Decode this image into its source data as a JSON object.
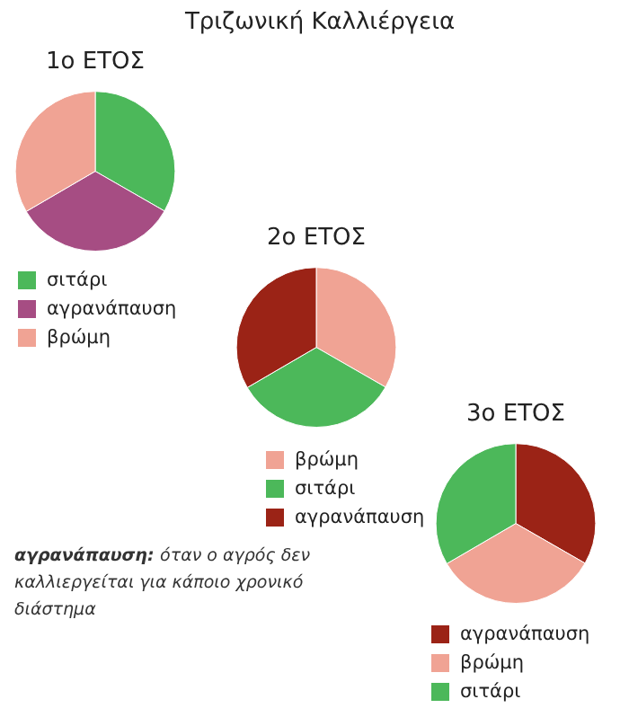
{
  "chart_data": [
    {
      "type": "other",
      "title": "Τριζωνική Καλλιέργεια",
      "annotations": [
        "αγρανάπαυση:",
        "όταν ο αγρός δεν καλλιεργείται για κάποιο χρονικό διάστημα"
      ]
    },
    {
      "type": "pie",
      "title": "1ο ΕΤΟΣ",
      "categories": [
        "σιτάρι",
        "αγρανάπαυση",
        "βρώμη"
      ],
      "values": [
        33.3,
        33.3,
        33.4
      ],
      "colors": [
        "#4cb85a",
        "#a64d83",
        "#f0a394"
      ],
      "legend": "bottom"
    },
    {
      "type": "pie",
      "title": "2ο ΕΤΟΣ",
      "categories": [
        "βρώμη",
        "σιτάρι",
        "αγρανάπαυση"
      ],
      "values": [
        33.3,
        33.3,
        33.4
      ],
      "colors": [
        "#f0a394",
        "#4cb85a",
        "#9b2316"
      ],
      "legend": "bottom"
    },
    {
      "type": "pie",
      "title": "3ο ΕΤΟΣ",
      "categories": [
        "αγρανάπαυση",
        "βρώμη",
        "σιτάρι"
      ],
      "values": [
        33.3,
        33.3,
        33.4
      ],
      "colors": [
        "#9b2316",
        "#f0a394",
        "#4cb85a"
      ],
      "legend": "bottom"
    }
  ]
}
